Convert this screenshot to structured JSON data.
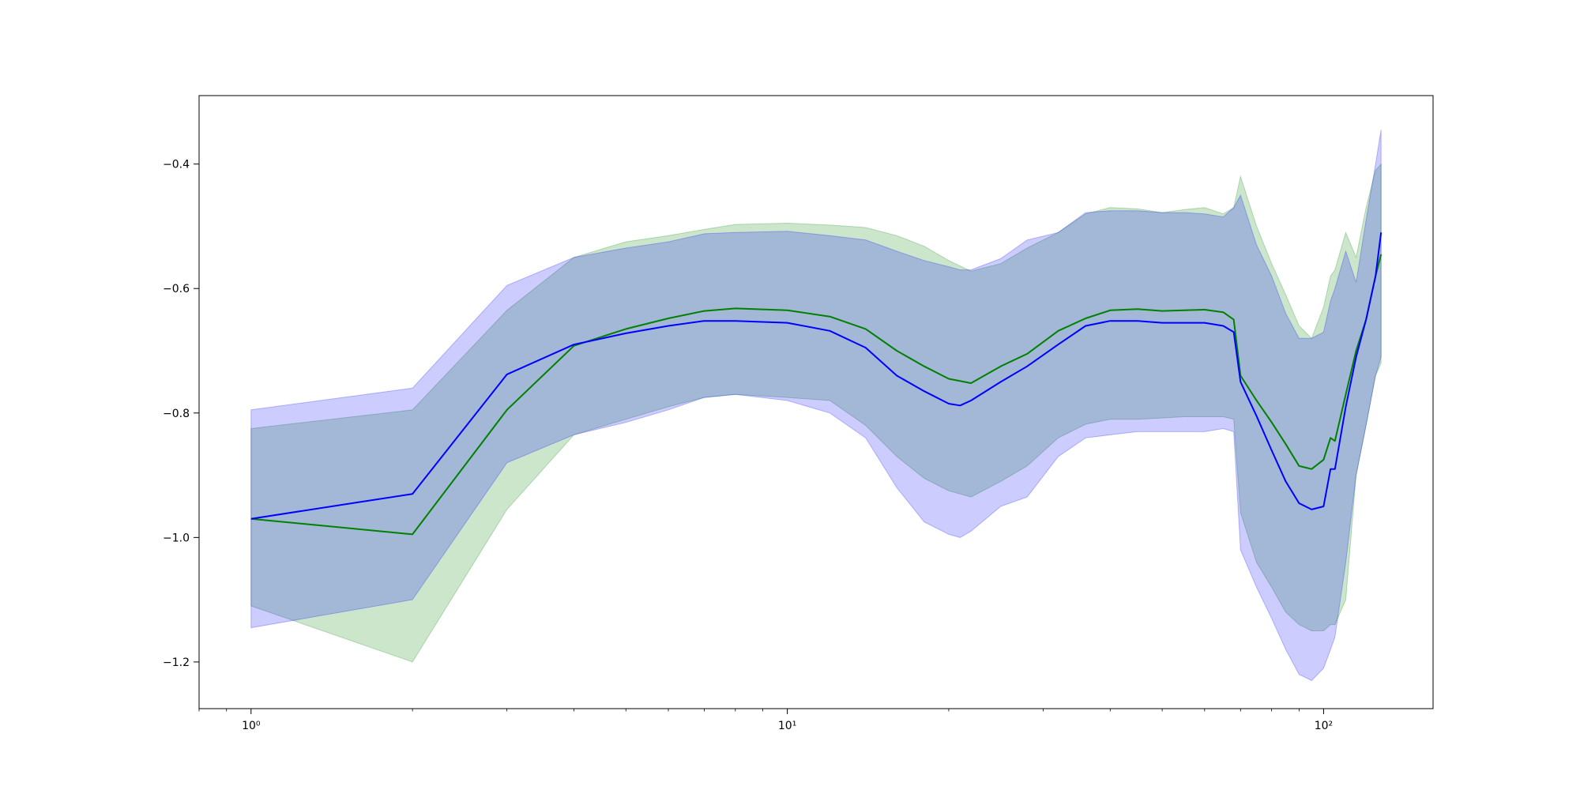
{
  "chart_data": {
    "type": "line",
    "title": "",
    "xlabel": "",
    "ylabel": "",
    "xscale": "log",
    "xlim": [
      0.8,
      160
    ],
    "ylim": [
      -1.275,
      -0.29
    ],
    "grid": false,
    "legend": "none",
    "x_ticks": [
      {
        "value": 1,
        "label": "10⁰"
      },
      {
        "value": 10,
        "label": "10¹"
      },
      {
        "value": 100,
        "label": "10²"
      }
    ],
    "y_ticks": [
      {
        "value": -0.4,
        "label": "−0.4"
      },
      {
        "value": -0.6,
        "label": "−0.6"
      },
      {
        "value": -0.8,
        "label": "−0.8"
      },
      {
        "value": -1.0,
        "label": "−1.0"
      },
      {
        "value": -1.2,
        "label": "−1.2"
      }
    ],
    "series": [
      {
        "color": "#008000",
        "band_color": "#008000",
        "x": [
          1,
          2,
          3,
          4,
          5,
          6,
          7,
          8,
          10,
          12,
          14,
          16,
          18,
          20,
          22,
          25,
          28,
          32,
          36,
          40,
          45,
          50,
          55,
          60,
          65,
          68,
          70,
          75,
          80,
          85,
          90,
          95,
          100,
          103,
          105,
          110,
          115,
          120,
          125,
          128
        ],
        "y": [
          -0.97,
          -0.995,
          -0.795,
          -0.692,
          -0.665,
          -0.648,
          -0.636,
          -0.632,
          -0.635,
          -0.645,
          -0.665,
          -0.7,
          -0.725,
          -0.745,
          -0.752,
          -0.725,
          -0.705,
          -0.668,
          -0.648,
          -0.635,
          -0.633,
          -0.636,
          -0.635,
          -0.634,
          -0.638,
          -0.65,
          -0.74,
          -0.78,
          -0.815,
          -0.85,
          -0.885,
          -0.89,
          -0.875,
          -0.84,
          -0.845,
          -0.77,
          -0.7,
          -0.65,
          -0.58,
          -0.545
        ],
        "upper": [
          -0.825,
          -0.795,
          -0.635,
          -0.55,
          -0.525,
          -0.515,
          -0.505,
          -0.497,
          -0.495,
          -0.498,
          -0.502,
          -0.515,
          -0.532,
          -0.555,
          -0.572,
          -0.56,
          -0.535,
          -0.51,
          -0.48,
          -0.47,
          -0.472,
          -0.478,
          -0.473,
          -0.47,
          -0.48,
          -0.47,
          -0.42,
          -0.5,
          -0.56,
          -0.61,
          -0.66,
          -0.68,
          -0.63,
          -0.58,
          -0.57,
          -0.51,
          -0.55,
          -0.47,
          -0.41,
          -0.4
        ],
        "lower": [
          -1.11,
          -1.2,
          -0.955,
          -0.835,
          -0.81,
          -0.79,
          -0.775,
          -0.77,
          -0.775,
          -0.78,
          -0.82,
          -0.87,
          -0.905,
          -0.925,
          -0.935,
          -0.91,
          -0.885,
          -0.84,
          -0.818,
          -0.81,
          -0.81,
          -0.808,
          -0.806,
          -0.806,
          -0.806,
          -0.81,
          -0.96,
          -1.04,
          -1.08,
          -1.12,
          -1.14,
          -1.15,
          -1.15,
          -1.14,
          -1.14,
          -1.1,
          -0.9,
          -0.82,
          -0.74,
          -0.72
        ]
      },
      {
        "color": "#0000ff",
        "band_color": "#0000ff",
        "x": [
          1,
          2,
          3,
          4,
          5,
          6,
          7,
          8,
          10,
          12,
          14,
          16,
          18,
          20,
          21,
          22,
          25,
          28,
          32,
          36,
          40,
          45,
          50,
          55,
          60,
          65,
          68,
          70,
          75,
          80,
          85,
          90,
          95,
          100,
          103,
          105,
          110,
          115,
          120,
          125,
          128
        ],
        "y": [
          -0.97,
          -0.93,
          -0.738,
          -0.69,
          -0.672,
          -0.66,
          -0.652,
          -0.652,
          -0.655,
          -0.668,
          -0.695,
          -0.74,
          -0.765,
          -0.785,
          -0.788,
          -0.78,
          -0.75,
          -0.725,
          -0.69,
          -0.66,
          -0.652,
          -0.652,
          -0.655,
          -0.655,
          -0.655,
          -0.66,
          -0.67,
          -0.75,
          -0.805,
          -0.86,
          -0.91,
          -0.945,
          -0.955,
          -0.95,
          -0.89,
          -0.89,
          -0.79,
          -0.71,
          -0.65,
          -0.58,
          -0.51
        ],
        "upper": [
          -0.795,
          -0.76,
          -0.595,
          -0.55,
          -0.535,
          -0.525,
          -0.512,
          -0.51,
          -0.508,
          -0.515,
          -0.522,
          -0.54,
          -0.555,
          -0.565,
          -0.57,
          -0.57,
          -0.552,
          -0.522,
          -0.51,
          -0.478,
          -0.475,
          -0.475,
          -0.478,
          -0.478,
          -0.48,
          -0.485,
          -0.47,
          -0.45,
          -0.53,
          -0.58,
          -0.64,
          -0.68,
          -0.68,
          -0.67,
          -0.62,
          -0.6,
          -0.54,
          -0.59,
          -0.49,
          -0.4,
          -0.345
        ],
        "lower": [
          -1.145,
          -1.1,
          -0.88,
          -0.835,
          -0.815,
          -0.795,
          -0.775,
          -0.77,
          -0.78,
          -0.8,
          -0.84,
          -0.92,
          -0.975,
          -0.995,
          -1.0,
          -0.99,
          -0.95,
          -0.935,
          -0.87,
          -0.84,
          -0.835,
          -0.83,
          -0.83,
          -0.83,
          -0.83,
          -0.825,
          -0.83,
          -1.02,
          -1.08,
          -1.13,
          -1.18,
          -1.22,
          -1.23,
          -1.21,
          -1.18,
          -1.16,
          -1.04,
          -0.9,
          -0.82,
          -0.74,
          -0.71
        ]
      }
    ]
  }
}
